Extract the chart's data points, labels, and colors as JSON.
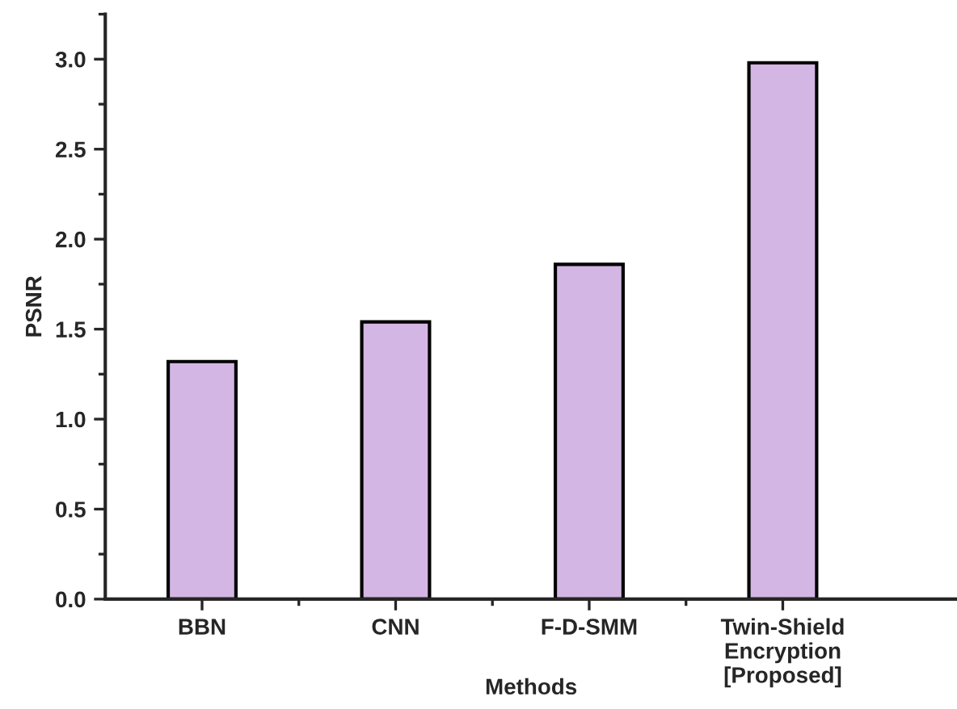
{
  "chart_data": {
    "type": "bar",
    "xlabel": "Methods",
    "ylabel": "PSNR",
    "categories": [
      "BBN",
      "CNN",
      "F-D-SMM",
      "Twin-Shield\nEncryption\n[Proposed]"
    ],
    "values": [
      1.32,
      1.54,
      1.86,
      2.98
    ],
    "color": "#d4b6e4",
    "ylim": [
      0,
      3.25
    ],
    "yticks": [
      {
        "value": 0,
        "label": "0.0"
      },
      0.5,
      {
        "value": 1,
        "label": "1.0"
      },
      1.5,
      {
        "value": 2,
        "label": "2.0"
      },
      2.5,
      {
        "value": 3,
        "label": "3.0"
      }
    ],
    "grid": false,
    "legend": false
  }
}
